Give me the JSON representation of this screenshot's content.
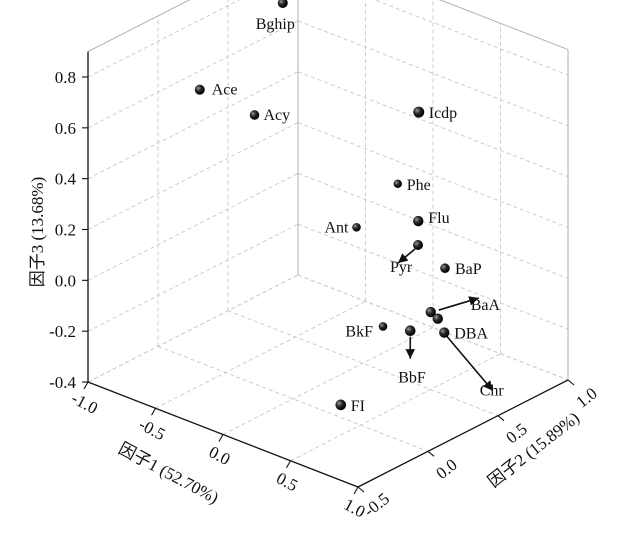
{
  "chart_data": {
    "type": "scatter",
    "title": "",
    "xlabel": "因子1 (52.70%)",
    "ylabel": "因子2 (15.89%)",
    "zlabel": "因子3 (13.68%)",
    "xlim": [
      -1.0,
      1.0
    ],
    "ylim": [
      -0.5,
      1.0
    ],
    "zlim": [
      -0.4,
      0.8
    ],
    "x_ticks": [
      "-1.0",
      "-0.5",
      "0.0",
      "0.5",
      "1.0"
    ],
    "y_ticks": [
      "-0.5",
      "0.0",
      "0.5",
      "1.0"
    ],
    "z_ticks": [
      "-0.4",
      "-0.2",
      "0.0",
      "0.2",
      "0.4",
      "0.6",
      "0.8"
    ],
    "grid": true,
    "points": [
      {
        "label": "Bghip",
        "x": -0.75,
        "y": 0.65,
        "z": 0.82
      },
      {
        "label": "Ace",
        "x": -0.95,
        "y": 0.25,
        "z": 0.55
      },
      {
        "label": "Acy",
        "x": -0.7,
        "y": 0.4,
        "z": 0.46
      },
      {
        "label": "Icdp",
        "x": 0.05,
        "y": 0.85,
        "z": 0.5
      },
      {
        "label": "Phe",
        "x": 0.05,
        "y": 0.7,
        "z": 0.26
      },
      {
        "label": "Ant",
        "x": -0.1,
        "y": 0.55,
        "z": 0.1
      },
      {
        "label": "Flu",
        "x": 0.15,
        "y": 0.75,
        "z": 0.12
      },
      {
        "label": "Pyr",
        "x": 0.2,
        "y": 0.7,
        "z": 0.05
      },
      {
        "label": "BaP",
        "x": 0.4,
        "y": 0.7,
        "z": 0.0
      },
      {
        "label": "BaA",
        "x": 0.45,
        "y": 0.55,
        "z": -0.12
      },
      {
        "label": "DBA",
        "x": 0.55,
        "y": 0.55,
        "z": -0.18
      },
      {
        "label": "BkF",
        "x": 0.2,
        "y": 0.45,
        "z": -0.2
      },
      {
        "label": "BbF",
        "x": 0.35,
        "y": 0.5,
        "z": -0.2
      },
      {
        "label": "Chr",
        "x": 0.45,
        "y": 0.6,
        "z": -0.16
      },
      {
        "label": "FI",
        "x": 0.25,
        "y": 0.1,
        "z": -0.4
      }
    ]
  }
}
